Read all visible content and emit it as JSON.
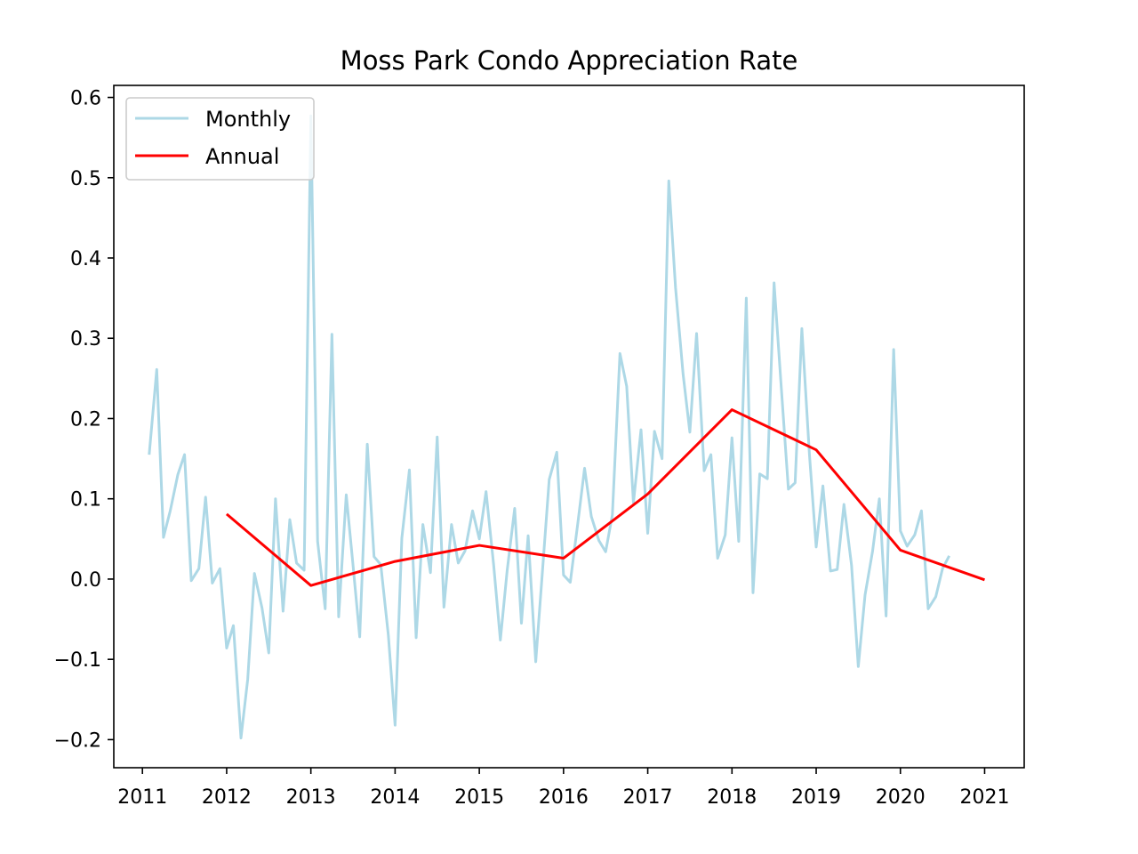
{
  "chart_data": {
    "type": "line",
    "title": "Moss Park Condo Appreciation Rate",
    "xlabel": "",
    "ylabel": "",
    "xlim": [
      2010.66,
      2021.47
    ],
    "ylim": [
      -0.235,
      0.615
    ],
    "x_ticks": [
      2011,
      2012,
      2013,
      2014,
      2015,
      2016,
      2017,
      2018,
      2019,
      2020,
      2021
    ],
    "x_tick_labels": [
      "2011",
      "2012",
      "2013",
      "2014",
      "2015",
      "2016",
      "2017",
      "2018",
      "2019",
      "2020",
      "2021"
    ],
    "y_ticks": [
      -0.2,
      -0.1,
      0.0,
      0.1,
      0.2,
      0.3,
      0.4,
      0.5,
      0.6
    ],
    "y_tick_labels": [
      "−0.2",
      "−0.1",
      "0.0",
      "0.1",
      "0.2",
      "0.3",
      "0.4",
      "0.5",
      "0.6"
    ],
    "grid": false,
    "legend": {
      "position": "top-left"
    },
    "series": [
      {
        "name": "Monthly",
        "color": "#add8e6",
        "x": [
          2011.08,
          2011.17,
          2011.25,
          2011.33,
          2011.42,
          2011.5,
          2011.58,
          2011.67,
          2011.75,
          2011.83,
          2011.92,
          2012.0,
          2012.08,
          2012.17,
          2012.25,
          2012.33,
          2012.42,
          2012.5,
          2012.58,
          2012.67,
          2012.75,
          2012.83,
          2012.92,
          2013.0,
          2013.08,
          2013.17,
          2013.25,
          2013.33,
          2013.42,
          2013.5,
          2013.58,
          2013.67,
          2013.75,
          2013.83,
          2013.92,
          2014.0,
          2014.08,
          2014.17,
          2014.25,
          2014.33,
          2014.42,
          2014.5,
          2014.58,
          2014.67,
          2014.75,
          2014.83,
          2014.92,
          2015.0,
          2015.08,
          2015.17,
          2015.25,
          2015.33,
          2015.42,
          2015.5,
          2015.58,
          2015.67,
          2015.75,
          2015.83,
          2015.92,
          2016.0,
          2016.08,
          2016.17,
          2016.25,
          2016.33,
          2016.42,
          2016.5,
          2016.58,
          2016.67,
          2016.75,
          2016.83,
          2016.92,
          2017.0,
          2017.08,
          2017.17,
          2017.25,
          2017.33,
          2017.42,
          2017.5,
          2017.58,
          2017.67,
          2017.75,
          2017.83,
          2017.92,
          2018.0,
          2018.08,
          2018.17,
          2018.25,
          2018.33,
          2018.42,
          2018.5,
          2018.58,
          2018.67,
          2018.75,
          2018.83,
          2018.92,
          2019.0,
          2019.08,
          2019.17,
          2019.25,
          2019.33,
          2019.42,
          2019.5,
          2019.58,
          2019.67,
          2019.75,
          2019.83,
          2019.92,
          2020.0,
          2020.08,
          2020.17,
          2020.25,
          2020.33,
          2020.42,
          2020.5,
          2020.58
        ],
        "values": [
          0.155,
          0.261,
          0.052,
          0.085,
          0.13,
          0.155,
          -0.002,
          0.013,
          0.102,
          -0.005,
          0.013,
          -0.086,
          -0.058,
          -0.198,
          -0.125,
          0.007,
          -0.036,
          -0.092,
          0.1,
          -0.04,
          0.074,
          0.02,
          0.011,
          0.577,
          0.047,
          -0.037,
          0.305,
          -0.047,
          0.105,
          0.018,
          -0.072,
          0.168,
          0.028,
          0.018,
          -0.07,
          -0.182,
          0.051,
          0.136,
          -0.073,
          0.068,
          0.008,
          0.177,
          -0.035,
          0.068,
          0.02,
          0.035,
          0.085,
          0.05,
          0.109,
          0.018,
          -0.076,
          0.01,
          0.088,
          -0.055,
          0.054,
          -0.103,
          0.01,
          0.124,
          0.158,
          0.005,
          -0.004,
          0.07,
          0.138,
          0.078,
          0.048,
          0.034,
          0.08,
          0.281,
          0.24,
          0.095,
          0.186,
          0.057,
          0.184,
          0.15,
          0.496,
          0.363,
          0.255,
          0.183,
          0.306,
          0.135,
          0.155,
          0.026,
          0.055,
          0.176,
          0.047,
          0.35,
          -0.017,
          0.131,
          0.125,
          0.369,
          0.247,
          0.112,
          0.12,
          0.312,
          0.155,
          0.04,
          0.116,
          0.01,
          0.012,
          0.093,
          0.017,
          -0.109,
          -0.02,
          0.035,
          0.1,
          -0.046,
          0.286,
          0.06,
          0.041,
          0.055,
          0.085,
          -0.037,
          -0.022,
          0.013,
          0.029
        ]
      },
      {
        "name": "Annual",
        "color": "#ff0000",
        "x": [
          2012,
          2013,
          2014,
          2015,
          2016,
          2017,
          2018,
          2019,
          2020,
          2021
        ],
        "values": [
          0.081,
          -0.008,
          0.022,
          0.042,
          0.026,
          0.106,
          0.211,
          0.161,
          0.036,
          -0.001
        ]
      }
    ]
  }
}
